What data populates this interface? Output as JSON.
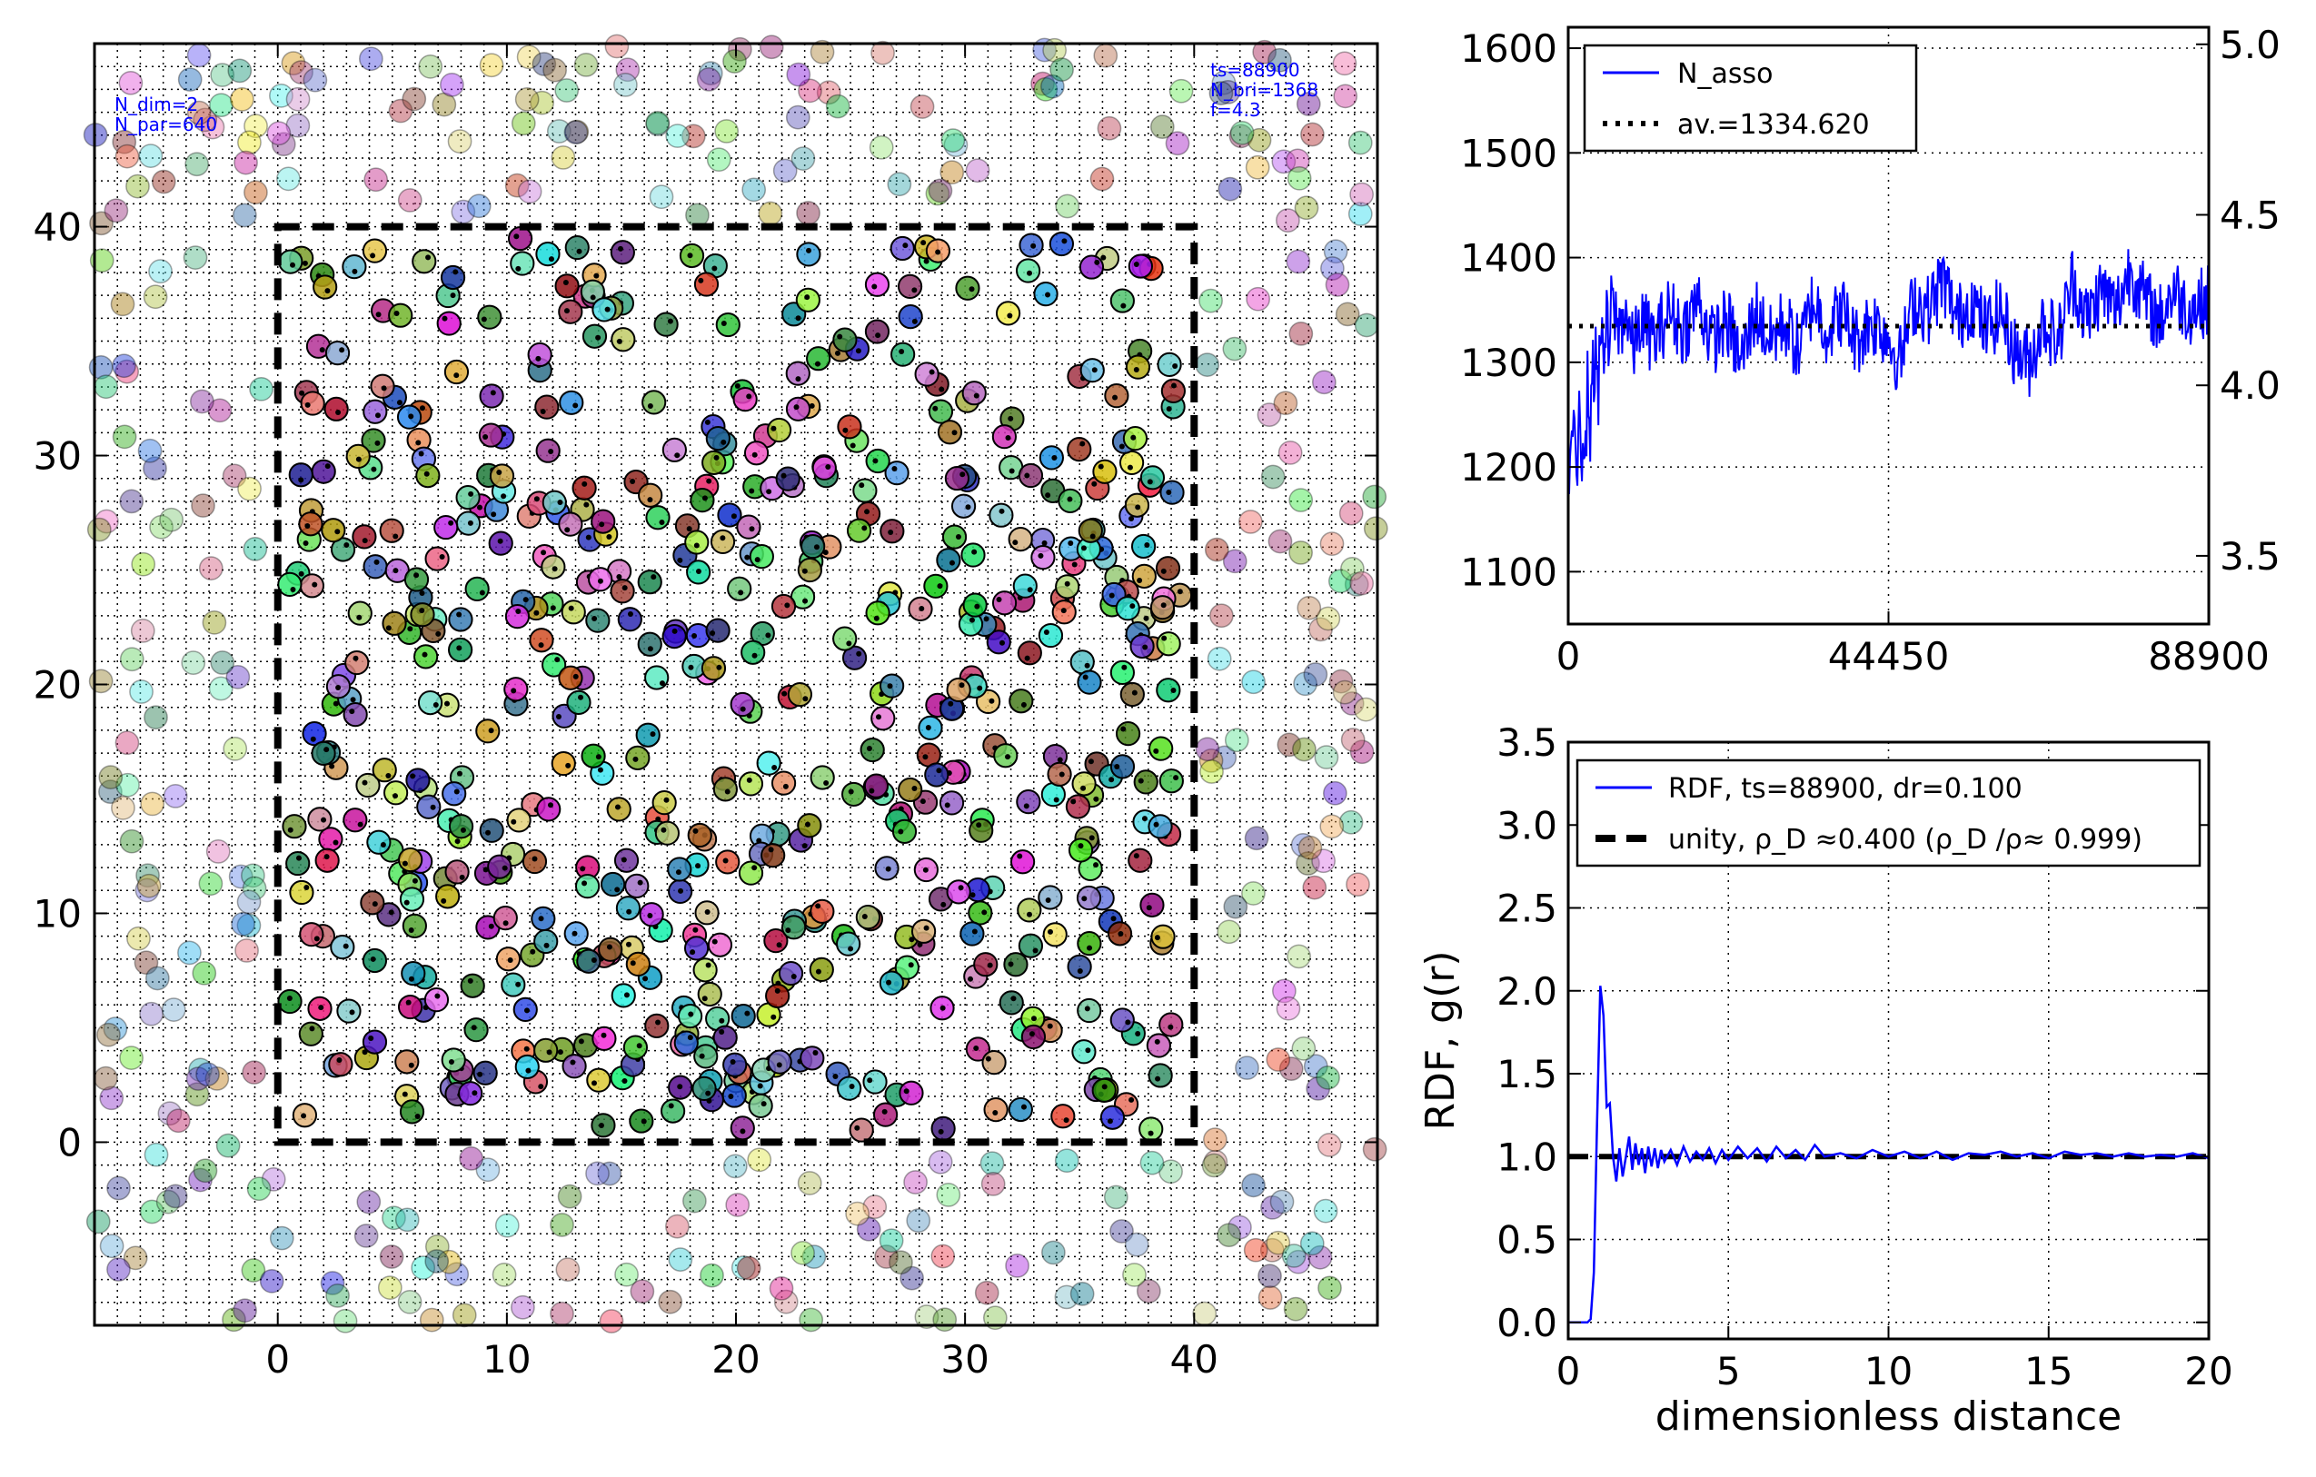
{
  "chart_data": [
    {
      "id": "particles",
      "type": "scatter",
      "xlim": [
        -8,
        48
      ],
      "ylim": [
        -8,
        48
      ],
      "xticks": [
        "0",
        "10",
        "20",
        "30",
        "40"
      ],
      "yticks": [
        "0",
        "10",
        "20",
        "30",
        "40"
      ],
      "xlabel": "",
      "ylabel": "",
      "grid": true,
      "box": {
        "x": [
          0,
          40
        ],
        "y": [
          0,
          40
        ],
        "style": "dashed",
        "color": "#000000"
      },
      "info_left": [
        "N_dim=2",
        "N_par=640"
      ],
      "info_right": [
        "ts=88900",
        "N_bri=1368",
        "f=4.3"
      ],
      "info_color": "#0000ff",
      "particle_radius": 0.5,
      "n_particles_inside": 640
    },
    {
      "id": "n_asso",
      "type": "line",
      "xlim": [
        0,
        88900
      ],
      "ylim": [
        1050,
        1620
      ],
      "xticks": [
        "0",
        "44450",
        "88900"
      ],
      "yticks": [
        "1100",
        "1200",
        "1300",
        "1400",
        "1500",
        "1600"
      ],
      "y2lim": [
        3.3,
        5.05
      ],
      "y2ticks": [
        "3.5",
        "4.0",
        "4.5",
        "5.0"
      ],
      "grid": true,
      "legend_position": "top-left",
      "series": [
        {
          "name": "N_asso",
          "color": "#0000ff",
          "style": "solid",
          "x": [
            0,
            300,
            600,
            900,
            1200,
            1500,
            1800,
            2100,
            2400,
            2700,
            3000,
            3300,
            3600,
            3900,
            4200,
            4500,
            4800,
            5100,
            5400,
            5700,
            6000,
            7000,
            8000,
            9000,
            10000,
            12000,
            14000,
            16000,
            18000,
            20000,
            22000,
            24000,
            26000,
            28000,
            30000,
            32000,
            34000,
            36000,
            38000,
            40000,
            42000,
            44000,
            46000,
            48000,
            50000,
            52000,
            54000,
            56000,
            58000,
            60000,
            62000,
            64000,
            66000,
            68000,
            70000,
            72000,
            74000,
            76000,
            78000,
            80000,
            82000,
            84000,
            86000,
            88900
          ],
          "y": [
            1165,
            1230,
            1190,
            1250,
            1175,
            1300,
            1210,
            1240,
            1200,
            1290,
            1220,
            1310,
            1260,
            1330,
            1270,
            1350,
            1290,
            1320,
            1340,
            1300,
            1360,
            1330,
            1350,
            1310,
            1340,
            1320,
            1350,
            1330,
            1360,
            1320,
            1340,
            1300,
            1350,
            1320,
            1340,
            1310,
            1360,
            1330,
            1350,
            1320,
            1340,
            1330,
            1300,
            1360,
            1350,
            1380,
            1340,
            1360,
            1330,
            1350,
            1310,
            1300,
            1340,
            1320,
            1380,
            1340,
            1370,
            1350,
            1390,
            1360,
            1340,
            1370,
            1350,
            1360
          ]
        },
        {
          "name": "av.=1334.620",
          "color": "#000000",
          "style": "dotted",
          "value": 1334.62
        }
      ]
    },
    {
      "id": "rdf",
      "type": "line",
      "xlim": [
        0,
        20
      ],
      "ylim": [
        -0.1,
        3.5
      ],
      "xticks": [
        "0",
        "5",
        "10",
        "15",
        "20"
      ],
      "yticks": [
        "0.0",
        "0.5",
        "1.0",
        "1.5",
        "2.0",
        "2.5",
        "3.0",
        "3.5"
      ],
      "xlabel": "dimensionless distance",
      "ylabel": "RDF, g(r)",
      "grid": true,
      "legend_position": "top",
      "series": [
        {
          "name": "RDF, ts=88900, dr=0.100",
          "color": "#0000ff",
          "style": "solid",
          "x": [
            0,
            0.1,
            0.2,
            0.3,
            0.4,
            0.5,
            0.6,
            0.7,
            0.8,
            0.9,
            1.0,
            1.1,
            1.2,
            1.3,
            1.4,
            1.5,
            1.6,
            1.7,
            1.8,
            1.9,
            2.0,
            2.1,
            2.2,
            2.3,
            2.4,
            2.5,
            2.6,
            2.7,
            2.8,
            2.9,
            3.0,
            3.2,
            3.4,
            3.6,
            3.8,
            4.0,
            4.2,
            4.4,
            4.6,
            4.8,
            5.0,
            5.3,
            5.6,
            5.9,
            6.2,
            6.5,
            6.8,
            7.1,
            7.4,
            7.7,
            8.0,
            8.5,
            9.0,
            9.5,
            10.0,
            10.5,
            11.0,
            11.5,
            12.0,
            12.5,
            13.0,
            13.5,
            14.0,
            14.5,
            15.0,
            15.5,
            16.0,
            16.5,
            17.0,
            17.5,
            18.0,
            18.5,
            19.0,
            19.5,
            20.0
          ],
          "y": [
            0,
            0,
            0,
            0,
            0,
            0,
            0,
            0.02,
            0.3,
            1.2,
            2.03,
            1.85,
            1.3,
            1.32,
            1.0,
            0.85,
            1.05,
            0.88,
            1.0,
            1.12,
            0.92,
            1.08,
            0.95,
            1.05,
            0.9,
            1.06,
            0.94,
            1.05,
            0.93,
            1.04,
            0.97,
            1.04,
            0.95,
            1.06,
            0.97,
            1.03,
            0.98,
            1.05,
            0.96,
            1.04,
            0.98,
            1.06,
            0.99,
            1.05,
            0.97,
            1.06,
            0.99,
            1.04,
            0.98,
            1.07,
            1.0,
            1.02,
            0.99,
            1.04,
            1.0,
            1.03,
            0.99,
            1.03,
            0.98,
            1.02,
            1.01,
            1.03,
            1.0,
            1.02,
            0.99,
            1.03,
            1.01,
            1.02,
            1.0,
            1.02,
            1.0,
            1.01,
            1.0,
            1.02,
            0.99
          ]
        },
        {
          "name": "unity, ρ_D ≈0.400 (ρ_D /ρ≈ 0.999)",
          "color": "#000000",
          "style": "dashed",
          "value": 1.0
        }
      ]
    }
  ]
}
